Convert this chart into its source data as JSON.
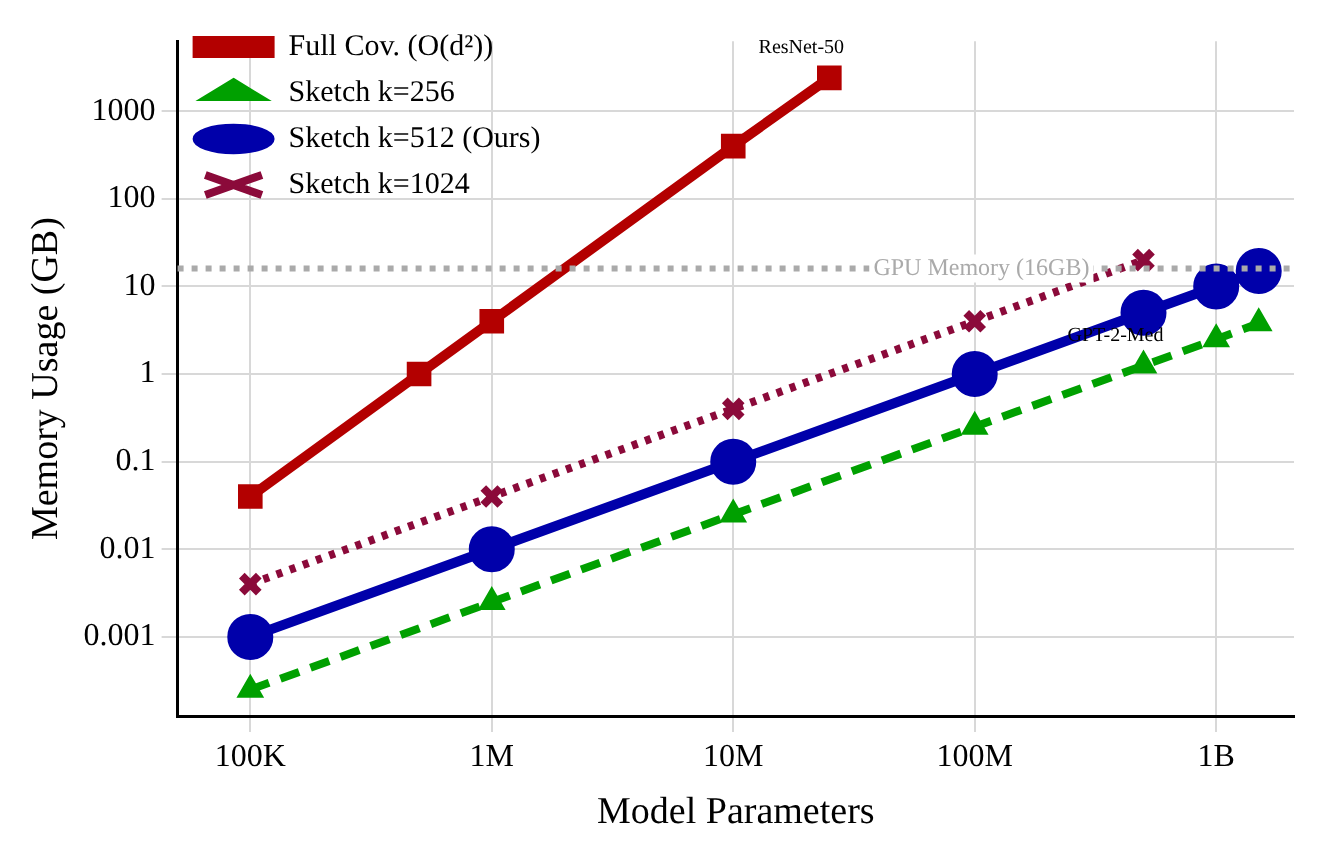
{
  "chart_data": {
    "type": "line",
    "xlabel": "Model Parameters",
    "ylabel": "Memory Usage (GB)",
    "log": "xy",
    "grid": true,
    "legend": "top left",
    "xlim": [
      50000,
      2100000000
    ],
    "ylim": [
      0.000125,
      6300
    ],
    "xticks": [
      {
        "value": 100000,
        "label": "100K"
      },
      {
        "value": 1000000,
        "label": "1M"
      },
      {
        "value": 10000000,
        "label": "10M"
      },
      {
        "value": 100000000,
        "label": "100M"
      },
      {
        "value": 1000000000,
        "label": "1B"
      }
    ],
    "yticks": [
      0.001,
      0.01,
      0.1,
      1,
      10,
      100,
      1000
    ],
    "series": [
      {
        "name": "Full Cov. (O(d²))",
        "color": "#b30000",
        "marker": "square",
        "line_style": "solid",
        "x": [
          100000,
          500000,
          1000000,
          10000000,
          25000000
        ],
        "values": [
          0.04,
          1,
          4,
          400,
          2400
        ]
      },
      {
        "name": "Sketch k=256",
        "color": "#00a000",
        "marker": "triangle",
        "line_style": "dashed",
        "x": [
          100000,
          1000000,
          10000000,
          100000000,
          500000000,
          1000000000,
          1500000000
        ],
        "values": [
          0.00025,
          0.0025,
          0.025,
          0.25,
          1.25,
          2.5,
          3.8
        ]
      },
      {
        "name": "Sketch k=512 (Ours)",
        "color": "#0000aa",
        "marker": "circle",
        "line_style": "solid",
        "x": [
          100000,
          1000000,
          10000000,
          100000000,
          500000000,
          1000000000,
          1500000000
        ],
        "values": [
          0.001,
          0.01,
          0.1,
          1,
          5,
          10,
          15
        ]
      },
      {
        "name": "Sketch k=1024",
        "color": "#8b0a3a",
        "marker": "cross",
        "line_style": "dotted",
        "x": [
          100000,
          1000000,
          10000000,
          100000000,
          500000000
        ],
        "values": [
          0.004,
          0.04,
          0.4,
          4,
          20
        ]
      }
    ],
    "ref_lines": [
      {
        "axis": "y",
        "value": 16,
        "label": "GPU Memory (16GB)",
        "color": "#aaaaaa",
        "line_style": "dotted"
      }
    ],
    "annotations": [
      {
        "text": "ResNet-50",
        "x": 25000000,
        "y": 2400
      },
      {
        "text": "GPT-2-Med",
        "x": 500000000,
        "y": 1.25
      }
    ]
  }
}
